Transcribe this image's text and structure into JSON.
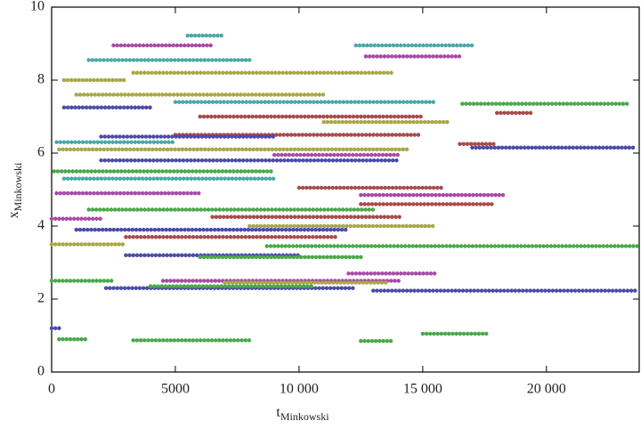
{
  "chart_data": {
    "type": "scatter",
    "xlabel": {
      "main": "t",
      "sub": "Minkowski"
    },
    "ylabel": {
      "main": "x",
      "sub": "Minkowski"
    },
    "xlim": [
      0,
      23750
    ],
    "ylim": [
      0,
      10
    ],
    "xticks": [
      0,
      5000,
      {
        "value": 10000,
        "label": "10 000"
      },
      {
        "value": 15000,
        "label": "15 000"
      },
      {
        "value": 20000,
        "label": "20 000"
      }
    ],
    "yticks": [
      0,
      2,
      4,
      6,
      8,
      10
    ],
    "series": [
      {
        "color": "#4b4ba8",
        "x": [
          13000,
          23700
        ],
        "values": [
          2.23,
          2.23
        ]
      },
      {
        "color": "#4ba84b",
        "x": [
          8700,
          23700
        ],
        "values": [
          3.45,
          3.45
        ]
      },
      {
        "color": "#4ba84b",
        "x": [
          16600,
          23300
        ],
        "values": [
          7.35,
          7.35
        ]
      },
      {
        "color": "#4b4ba8",
        "x": [
          17000,
          23500
        ],
        "values": [
          6.15,
          6.15
        ]
      },
      {
        "color": "#4ba8a8",
        "x": [
          12300,
          17100
        ],
        "values": [
          8.95,
          8.95
        ]
      },
      {
        "color": "#a84ba8",
        "x": [
          12700,
          16600
        ],
        "values": [
          8.65,
          8.65
        ]
      },
      {
        "color": "#a8a84b",
        "x": [
          3300,
          13800
        ],
        "values": [
          8.2,
          8.2
        ]
      },
      {
        "color": "#4ba84b",
        "x": [
          3300,
          8000
        ],
        "values": [
          0.87,
          0.87
        ]
      },
      {
        "color": "#4ba84b",
        "x": [
          15000,
          17700
        ],
        "values": [
          1.05,
          1.05
        ]
      },
      {
        "color": "#4b4ba8",
        "x": [
          2200,
          12200
        ],
        "values": [
          2.3,
          2.3
        ]
      },
      {
        "color": "#a84ba8",
        "x": [
          4500,
          14100
        ],
        "values": [
          2.5,
          2.5
        ]
      },
      {
        "color": "#a84b4b",
        "x": [
          12500,
          17900
        ],
        "values": [
          4.6,
          4.6
        ]
      },
      {
        "color": "#a84ba8",
        "x": [
          12500,
          18300
        ],
        "values": [
          4.85,
          4.85
        ]
      },
      {
        "color": "#a84b4b",
        "x": [
          5000,
          14900
        ],
        "values": [
          6.5,
          6.5
        ]
      },
      {
        "color": "#a84b4b",
        "x": [
          10000,
          15800
        ],
        "values": [
          5.05,
          5.05
        ]
      },
      {
        "color": "#a8a84b",
        "x": [
          300,
          14500
        ],
        "values": [
          6.1,
          6.1
        ]
      },
      {
        "color": "#4b4ba8",
        "x": [
          2000,
          14000
        ],
        "values": [
          5.8,
          5.8
        ]
      },
      {
        "color": "#4ba84b",
        "x": [
          1500,
          13000
        ],
        "values": [
          4.45,
          4.45
        ]
      },
      {
        "color": "#4b4ba8",
        "x": [
          1000,
          12000
        ],
        "values": [
          3.9,
          3.9
        ]
      },
      {
        "color": "#a84b4b",
        "x": [
          3000,
          11500
        ],
        "values": [
          3.7,
          3.7
        ]
      },
      {
        "color": "#4ba8a8",
        "x": [
          500,
          9000
        ],
        "values": [
          5.3,
          5.3
        ]
      },
      {
        "color": "#a8a84b",
        "x": [
          1000,
          11000
        ],
        "values": [
          7.6,
          7.6
        ]
      },
      {
        "color": "#4ba8a8",
        "x": [
          5000,
          15500
        ],
        "values": [
          7.4,
          7.4
        ]
      },
      {
        "color": "#a84b4b",
        "x": [
          6000,
          15000
        ],
        "values": [
          7.0,
          7.0
        ]
      },
      {
        "color": "#4ba8a8",
        "x": [
          1500,
          8000
        ],
        "values": [
          8.55,
          8.55
        ]
      },
      {
        "color": "#a84ba8",
        "x": [
          2500,
          6500
        ],
        "values": [
          8.95,
          8.95
        ]
      },
      {
        "color": "#4ba8a8",
        "x": [
          5500,
          7000
        ],
        "values": [
          9.22,
          9.22
        ]
      },
      {
        "color": "#a8a84b",
        "x": [
          8000,
          15500
        ],
        "values": [
          4.0,
          4.0
        ]
      },
      {
        "color": "#4b4ba8",
        "x": [
          3000,
          10000
        ],
        "values": [
          3.2,
          3.2
        ]
      },
      {
        "color": "#4ba84b",
        "x": [
          6000,
          12500
        ],
        "values": [
          3.15,
          3.15
        ]
      },
      {
        "color": "#a8a84b",
        "x": [
          7000,
          13500
        ],
        "values": [
          2.45,
          2.45
        ]
      },
      {
        "color": "#a84ba8",
        "x": [
          12000,
          15500
        ],
        "values": [
          2.7,
          2.7
        ]
      },
      {
        "color": "#a84ba8",
        "x": [
          200,
          6000
        ],
        "values": [
          4.9,
          4.9
        ]
      },
      {
        "color": "#4ba84b",
        "x": [
          100,
          9000
        ],
        "values": [
          5.5,
          5.5
        ]
      },
      {
        "color": "#4ba8a8",
        "x": [
          200,
          5000
        ],
        "values": [
          6.3,
          6.3
        ]
      },
      {
        "color": "#4b4ba8",
        "x": [
          500,
          4000
        ],
        "values": [
          7.25,
          7.25
        ]
      },
      {
        "color": "#a8a84b",
        "x": [
          0,
          3000
        ],
        "values": [
          3.5,
          3.5
        ]
      },
      {
        "color": "#a84ba8",
        "x": [
          9000,
          14000
        ],
        "values": [
          5.95,
          5.95
        ]
      },
      {
        "color": "#a8a84b",
        "x": [
          11000,
          16000
        ],
        "values": [
          6.85,
          6.85
        ]
      },
      {
        "color": "#a8a84b",
        "x": [
          500,
          3000
        ],
        "values": [
          8.0,
          8.0
        ]
      },
      {
        "color": "#4ba84b",
        "x": [
          0,
          2500
        ],
        "values": [
          2.5,
          2.5
        ]
      },
      {
        "color": "#4ba84b",
        "x": [
          300,
          1500
        ],
        "values": [
          0.9,
          0.9
        ]
      },
      {
        "color": "#4b4ba8",
        "x": [
          0,
          400
        ],
        "values": [
          1.2,
          1.2
        ]
      },
      {
        "color": "#4ba84b",
        "x": [
          12500,
          13800
        ],
        "values": [
          0.85,
          0.85
        ]
      },
      {
        "color": "#a84b4b",
        "x": [
          6500,
          14200
        ],
        "values": [
          4.25,
          4.25
        ]
      },
      {
        "color": "#4b4ba8",
        "x": [
          2000,
          9000
        ],
        "values": [
          6.45,
          6.45
        ]
      },
      {
        "color": "#a84b4b",
        "x": [
          18000,
          19500
        ],
        "values": [
          7.1,
          7.1
        ]
      },
      {
        "color": "#a84b4b",
        "x": [
          16500,
          18000
        ],
        "values": [
          6.25,
          6.25
        ]
      },
      {
        "color": "#a84ba8",
        "x": [
          0,
          2000
        ],
        "values": [
          4.2,
          4.2
        ]
      },
      {
        "color": "#4ba84b",
        "x": [
          4000,
          10500
        ],
        "values": [
          2.35,
          2.35
        ]
      }
    ]
  }
}
